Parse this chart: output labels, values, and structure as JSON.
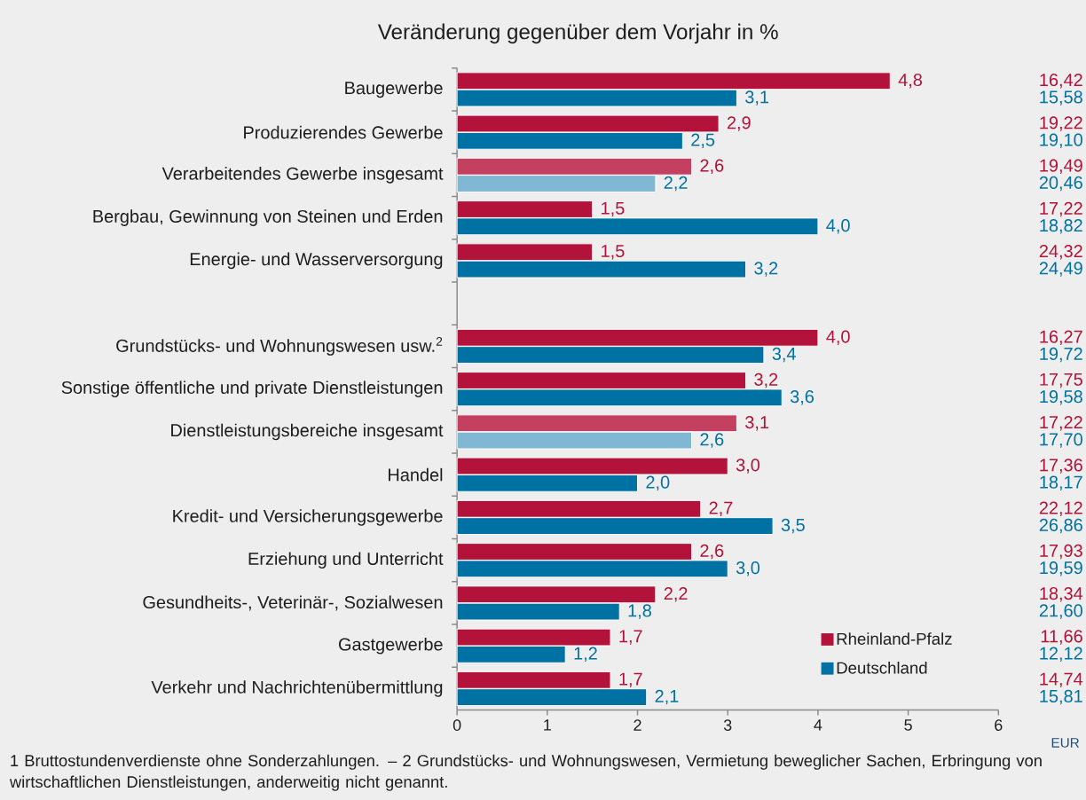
{
  "chart_data": {
    "type": "bar",
    "orientation": "horizontal",
    "title": "Veränderung gegenüber dem Vorjahr in %",
    "categories": [
      "Baugewerbe",
      "Produzierendes Gewerbe",
      "Verarbeitendes Gewerbe insgesamt",
      "Bergbau, Gewinnung von Steinen und Erden",
      "Energie- und Wasserversorgung",
      null,
      "Grundstücks- und Wohnungswesen usw.$^{2}$",
      "Sonstige öffentliche und private Dienstleistungen",
      "Dienstleistungsbereiche insgesamt",
      "Handel",
      "Kredit- und Versicherungsgewerbe",
      "Erziehung und Unterricht",
      "Gesundheits-, Veterinär-, Sozialwesen",
      "Gastgewerbe",
      "Verkehr und Nachrichtenübermittlung"
    ],
    "series": [
      {
        "name": "Rheinland-Pfalz",
        "color": "#b3123a",
        "colors": [
          "#b3123a",
          "#b3123a",
          "#c44060",
          "#b3123a",
          "#b3123a",
          null,
          "#b3123a",
          "#b3123a",
          "#c44060",
          "#b3123a",
          "#b3123a",
          "#b3123a",
          "#b3123a",
          "#b3123a",
          "#b3123a"
        ],
        "values": [
          4.8,
          2.9,
          2.6,
          1.5,
          1.5,
          null,
          4.0,
          3.2,
          3.1,
          3.0,
          2.7,
          2.6,
          2.2,
          1.7,
          1.7
        ],
        "value_labels": [
          "4,8",
          "2,9",
          "2,6",
          "1,5",
          "1,5",
          null,
          "4,0",
          "3,2",
          "3,1",
          "3,0",
          "2,7",
          "2,6",
          "2,2",
          "1,7",
          "1,7"
        ]
      },
      {
        "name": "Deutschland",
        "color": "#0071a3",
        "colors": [
          "#0071a3",
          "#0071a3",
          "#80b8d4",
          "#0071a3",
          "#0071a3",
          null,
          "#0071a3",
          "#0071a3",
          "#80b8d4",
          "#0071a3",
          "#0071a3",
          "#0071a3",
          "#0071a3",
          "#0071a3",
          "#0071a3"
        ],
        "values": [
          3.1,
          2.5,
          2.2,
          4.0,
          3.2,
          null,
          3.4,
          3.6,
          2.6,
          2.0,
          3.5,
          3.0,
          1.8,
          1.2,
          2.1
        ],
        "value_labels": [
          "3,1",
          "2,5",
          "2,2",
          "4,0",
          "3,2",
          null,
          "3,4",
          "3,6",
          "2,6",
          "2,0",
          "3,5",
          "3,0",
          "1,8",
          "1,2",
          "2,1"
        ]
      }
    ],
    "xlim": [
      0,
      6
    ],
    "xticks": [
      0,
      1,
      2,
      3,
      4,
      5,
      6
    ],
    "legend": "bottom right",
    "annotations": [
      "16,42",
      "15,58",
      "19,22",
      "19,10",
      "19,49",
      "20,46",
      "17,22",
      "18,82",
      "24,32",
      "24,49",
      "16,27",
      "19,72",
      "17,75",
      "19,58",
      "17,22",
      "17,70",
      "17,36",
      "18,17",
      "22,12",
      "26,86",
      "17,93",
      "19,59",
      "18,34",
      "21,60",
      "11,66",
      "12,12",
      "14,74",
      "15,81",
      "EUR",
      "1 Bruttostundenverdienste ohne Sonderzahlungen. – 2 Grundstücks- und Wohnungswesen, Vermietung beweglicher Sachen, Erbringung von wirtschaftlichen Dienstleistungen, anderweitig nicht genannt."
    ]
  }
}
